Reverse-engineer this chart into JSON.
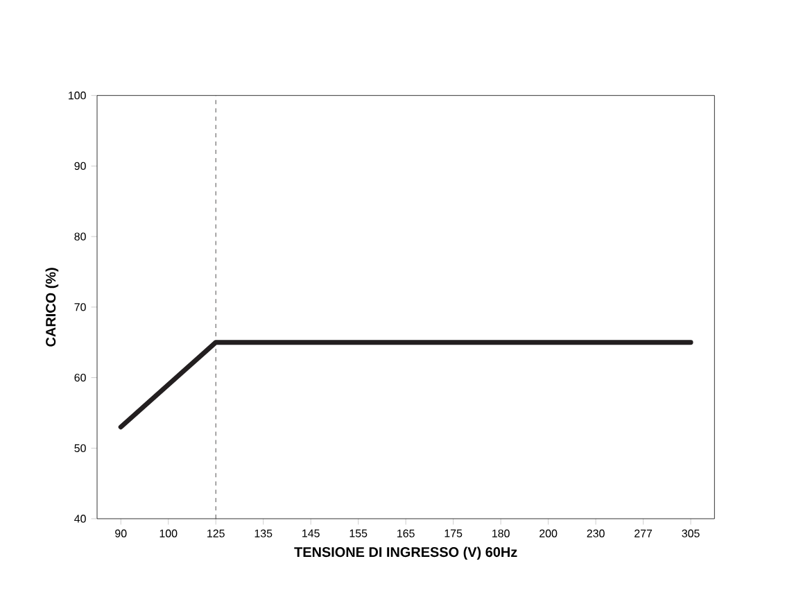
{
  "chart_data": {
    "type": "line",
    "xlabel": "TENSIONE DI INGRESSO (V) 60Hz",
    "ylabel": "CARICO (%)",
    "categories": [
      "90",
      "100",
      "125",
      "135",
      "145",
      "155",
      "165",
      "175",
      "180",
      "200",
      "230",
      "277",
      "305"
    ],
    "series": [
      {
        "color": "#231f20",
        "values": [
          53,
          59,
          65,
          65,
          65,
          65,
          65,
          65,
          65,
          65,
          65,
          65,
          65
        ]
      }
    ],
    "ylim": [
      40,
      100
    ],
    "yticks": [
      40,
      50,
      60,
      70,
      80,
      90,
      100
    ],
    "ref_lines": [
      {
        "axis": "x",
        "value": "125",
        "line_style": "dashed",
        "color": "#231f20"
      }
    ],
    "marker": "none",
    "line_style": "solid",
    "grid": false
  }
}
